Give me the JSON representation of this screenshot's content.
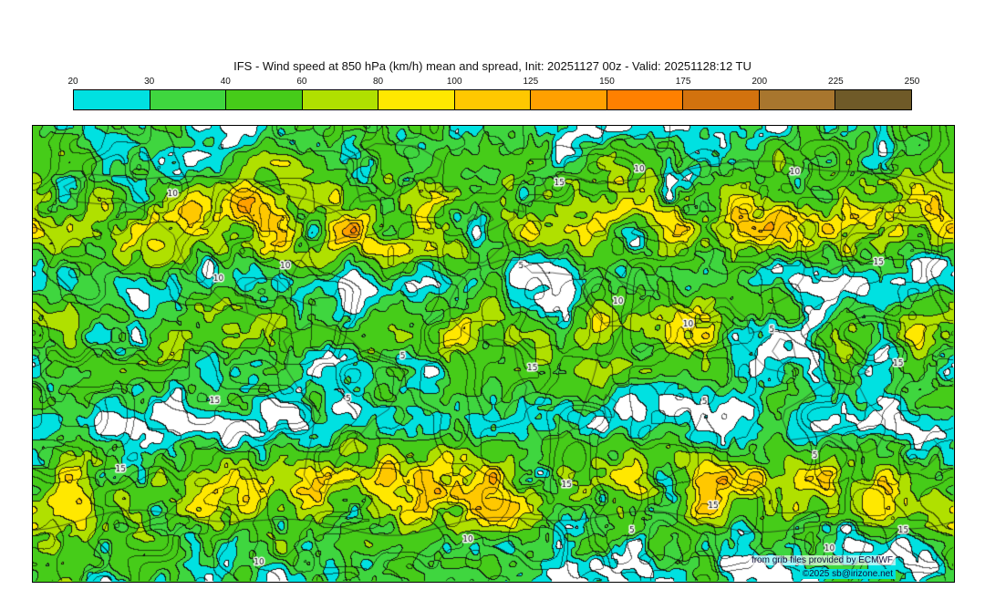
{
  "header": {
    "title": "IFS - Wind speed at 850 hPa (km/h) mean and spread, Init: 20251127 00z - Valid: 20251128:12 TU",
    "model": "IFS",
    "variable": "Wind speed at 850 hPa (km/h) mean and spread",
    "init": "20251127 00z",
    "valid": "20251128:12 TU"
  },
  "colorbar": {
    "unit": "km/h",
    "tick_labels": [
      "20",
      "30",
      "40",
      "60",
      "80",
      "100",
      "125",
      "150",
      "175",
      "200",
      "225",
      "250"
    ],
    "thresholds": [
      20,
      30,
      40,
      60,
      80,
      100,
      125,
      150,
      175,
      200,
      225,
      250
    ],
    "segments": [
      {
        "label": "20-30",
        "color": "#00e1e1"
      },
      {
        "label": "30-40",
        "color": "#3fd63f"
      },
      {
        "label": "40-60",
        "color": "#46cc19"
      },
      {
        "label": "60-80",
        "color": "#b0e000"
      },
      {
        "label": "80-100",
        "color": "#ffe800"
      },
      {
        "label": "100-125",
        "color": "#ffc800"
      },
      {
        "label": "125-150",
        "color": "#ffa000"
      },
      {
        "label": "150-175",
        "color": "#ff8000"
      },
      {
        "label": "175-200",
        "color": "#d2720e"
      },
      {
        "label": "200-225",
        "color": "#a8762e"
      },
      {
        "label": "225-250",
        "color": "#6f5a28"
      }
    ]
  },
  "map": {
    "background_color": "#ffffff",
    "contour_color": "#121212",
    "coastline_color": "#1a1a1a",
    "contour_label_values": [
      "5",
      "10",
      "15"
    ]
  },
  "footer": {
    "credit": "from grib files provided by ECMWF",
    "copyright": "©2025 sb@irizone.net",
    "copyright_bg": "#00dede"
  },
  "chart_data": {
    "type": "heatmap",
    "title": "IFS - Wind speed at 850 hPa (km/h) mean and spread, Init: 20251127 00z - Valid: 20251128:12 TU",
    "variable": "wind speed at 850 hPa",
    "unit": "km/h",
    "projection": "equirectangular world map",
    "levels": [
      20,
      30,
      40,
      60,
      80,
      100,
      125,
      150,
      175,
      200,
      225,
      250
    ],
    "palette": [
      "#00e1e1",
      "#3fd63f",
      "#46cc19",
      "#b0e000",
      "#ffe800",
      "#ffc800",
      "#ffa000",
      "#ff8000",
      "#d2720e",
      "#a8762e",
      "#6f5a28"
    ],
    "spread_contour_values": [
      5,
      10,
      15
    ],
    "legend_position": "top",
    "notes": "Filled contours of ensemble-mean wind speed; thin black contours of ensemble spread labelled 5/10/15; values below 20 km/h shown white."
  }
}
